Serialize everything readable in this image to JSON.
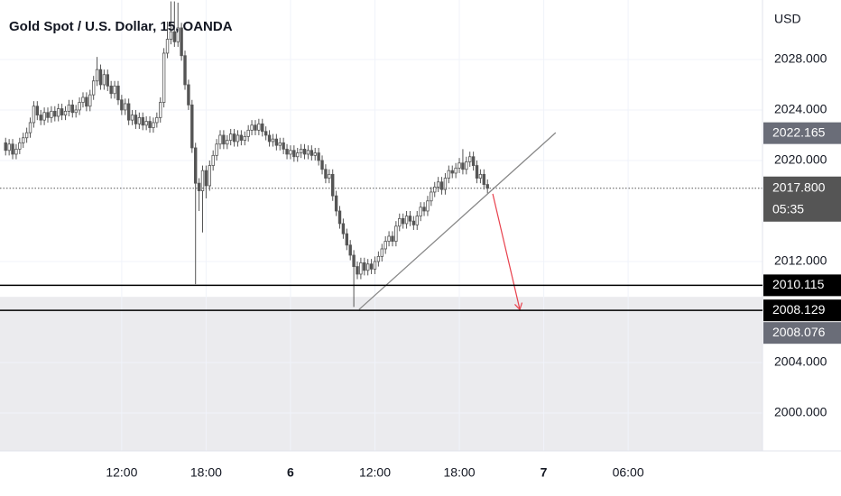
{
  "chart_data": {
    "type": "candlestick",
    "title": "Gold Spot / U.S. Dollar, 15, OANDA",
    "y_unit": "USD",
    "ylim": [
      1997.0,
      2032.71
    ],
    "yticks": [
      {
        "value": 2000,
        "label": "2000.000"
      },
      {
        "value": 2004,
        "label": "2004.000"
      },
      {
        "value": 2012,
        "label": "2012.000"
      },
      {
        "value": 2020,
        "label": "2020.000"
      },
      {
        "value": 2024,
        "label": "2024.000"
      },
      {
        "value": 2028,
        "label": "2028.000"
      }
    ],
    "xlim": [
      -1.6,
      215.2
    ],
    "xticks": [
      {
        "value": 33,
        "label": "12:00"
      },
      {
        "value": 57,
        "label": "18:00"
      },
      {
        "value": 81,
        "label": "6"
      },
      {
        "value": 105,
        "label": "12:00"
      },
      {
        "value": 129,
        "label": "18:00"
      },
      {
        "value": 153,
        "label": "7"
      },
      {
        "value": 177,
        "label": "06:00"
      }
    ],
    "grid": true,
    "up_color": "#ffffff",
    "down_color": "#555555",
    "wick_color": "#555555",
    "candles": [
      [
        2021.4,
        2021.8,
        2020.4,
        2020.8
      ],
      [
        2020.8,
        2021.7,
        2020.4,
        2021.3
      ],
      [
        2021.3,
        2021.7,
        2020.1,
        2020.5
      ],
      [
        2020.5,
        2021.3,
        2020.1,
        2020.9
      ],
      [
        2020.9,
        2021.8,
        2020.5,
        2021.4
      ],
      [
        2021.4,
        2022.2,
        2021.0,
        2021.8
      ],
      [
        2021.8,
        2022.6,
        2021.4,
        2022.2
      ],
      [
        2022.2,
        2023.4,
        2021.8,
        2023.0
      ],
      [
        2023.0,
        2024.7,
        2022.6,
        2024.3
      ],
      [
        2024.3,
        2024.7,
        2023.2,
        2023.6
      ],
      [
        2023.6,
        2024.0,
        2022.8,
        2023.2
      ],
      [
        2023.2,
        2024.2,
        2022.8,
        2023.8
      ],
      [
        2023.8,
        2024.2,
        2023.0,
        2023.4
      ],
      [
        2023.4,
        2024.3,
        2023.0,
        2023.9
      ],
      [
        2023.9,
        2024.3,
        2023.1,
        2023.5
      ],
      [
        2023.5,
        2024.5,
        2023.1,
        2024.1
      ],
      [
        2024.1,
        2024.5,
        2023.2,
        2023.6
      ],
      [
        2023.6,
        2024.3,
        2023.2,
        2023.9
      ],
      [
        2023.9,
        2024.8,
        2023.5,
        2024.4
      ],
      [
        2024.4,
        2024.8,
        2023.4,
        2023.8
      ],
      [
        2023.8,
        2024.4,
        2023.4,
        2024.0
      ],
      [
        2024.0,
        2025.0,
        2023.6,
        2024.6
      ],
      [
        2024.6,
        2025.4,
        2024.2,
        2025.0
      ],
      [
        2025.0,
        2025.4,
        2023.9,
        2024.3
      ],
      [
        2024.3,
        2025.6,
        2023.9,
        2025.2
      ],
      [
        2025.2,
        2026.7,
        2024.8,
        2026.3
      ],
      [
        2026.3,
        2028.2,
        2025.9,
        2027.2
      ],
      [
        2027.2,
        2027.6,
        2025.6,
        2026.0
      ],
      [
        2026.0,
        2027.2,
        2025.6,
        2026.8
      ],
      [
        2026.8,
        2027.2,
        2025.5,
        2025.9
      ],
      [
        2025.9,
        2026.3,
        2024.9,
        2025.3
      ],
      [
        2025.3,
        2026.3,
        2024.9,
        2025.9
      ],
      [
        2025.9,
        2026.3,
        2024.4,
        2024.8
      ],
      [
        2024.8,
        2025.2,
        2023.6,
        2024.0
      ],
      [
        2024.0,
        2024.9,
        2023.6,
        2024.5
      ],
      [
        2024.5,
        2024.9,
        2022.8,
        2023.2
      ],
      [
        2023.2,
        2024.0,
        2022.8,
        2023.6
      ],
      [
        2023.6,
        2024.0,
        2022.5,
        2022.9
      ],
      [
        2022.9,
        2023.8,
        2022.5,
        2023.4
      ],
      [
        2023.4,
        2023.8,
        2022.4,
        2022.8
      ],
      [
        2022.8,
        2023.5,
        2022.4,
        2023.1
      ],
      [
        2023.1,
        2023.5,
        2022.2,
        2022.6
      ],
      [
        2022.6,
        2023.4,
        2022.2,
        2023.0
      ],
      [
        2023.0,
        2023.8,
        2022.6,
        2023.4
      ],
      [
        2023.4,
        2025.0,
        2023.0,
        2024.6
      ],
      [
        2024.6,
        2028.9,
        2024.2,
        2028.5
      ],
      [
        2028.5,
        2031.0,
        2028.1,
        2029.6
      ],
      [
        2029.6,
        2032.6,
        2029.2,
        2030.2
      ],
      [
        2030.2,
        2032.6,
        2029.0,
        2029.4
      ],
      [
        2029.4,
        2032.5,
        2029.0,
        2030.5
      ],
      [
        2030.5,
        2030.9,
        2027.9,
        2028.3
      ],
      [
        2028.3,
        2028.7,
        2025.6,
        2026.0
      ],
      [
        2026.0,
        2026.4,
        2024.0,
        2024.4
      ],
      [
        2024.4,
        2024.8,
        2020.6,
        2021.0
      ],
      [
        2021.0,
        2021.4,
        2010.2,
        2018.2
      ],
      [
        2018.2,
        2018.6,
        2016.0,
        2017.6
      ],
      [
        2017.6,
        2019.6,
        2014.3,
        2019.2
      ],
      [
        2019.2,
        2019.6,
        2017.0,
        2018.0
      ],
      [
        2018.0,
        2020.0,
        2017.6,
        2019.6
      ],
      [
        2019.6,
        2020.8,
        2019.2,
        2020.4
      ],
      [
        2020.4,
        2021.7,
        2020.0,
        2021.3
      ],
      [
        2021.3,
        2022.4,
        2020.9,
        2022.0
      ],
      [
        2022.0,
        2022.4,
        2020.9,
        2021.3
      ],
      [
        2021.3,
        2022.0,
        2020.9,
        2021.6
      ],
      [
        2021.6,
        2022.5,
        2021.2,
        2022.1
      ],
      [
        2022.1,
        2022.5,
        2021.1,
        2021.5
      ],
      [
        2021.5,
        2022.4,
        2021.1,
        2022.0
      ],
      [
        2022.0,
        2022.4,
        2021.2,
        2021.6
      ],
      [
        2021.6,
        2022.3,
        2021.2,
        2021.9
      ],
      [
        2021.9,
        2022.8,
        2021.5,
        2022.4
      ],
      [
        2022.4,
        2023.2,
        2022.0,
        2022.8
      ],
      [
        2022.8,
        2023.2,
        2022.0,
        2022.4
      ],
      [
        2022.4,
        2023.3,
        2022.0,
        2022.9
      ],
      [
        2022.9,
        2023.3,
        2021.9,
        2022.3
      ],
      [
        2022.3,
        2022.7,
        2021.6,
        2022.0
      ],
      [
        2022.0,
        2022.4,
        2021.1,
        2021.5
      ],
      [
        2021.5,
        2022.1,
        2021.1,
        2021.7
      ],
      [
        2021.7,
        2022.1,
        2020.8,
        2021.2
      ],
      [
        2021.2,
        2021.8,
        2020.8,
        2021.4
      ],
      [
        2021.4,
        2021.8,
        2020.5,
        2020.9
      ],
      [
        2020.9,
        2021.3,
        2020.1,
        2020.5
      ],
      [
        2020.5,
        2021.2,
        2020.1,
        2020.8
      ],
      [
        2020.8,
        2021.2,
        2019.9,
        2020.3
      ],
      [
        2020.3,
        2021.0,
        2019.9,
        2020.6
      ],
      [
        2020.6,
        2021.3,
        2020.2,
        2020.9
      ],
      [
        2020.9,
        2021.3,
        2020.1,
        2020.5
      ],
      [
        2020.5,
        2021.2,
        2020.1,
        2020.8
      ],
      [
        2020.8,
        2021.2,
        2020.0,
        2020.4
      ],
      [
        2020.4,
        2021.0,
        2020.0,
        2020.6
      ],
      [
        2020.6,
        2021.0,
        2019.6,
        2020.0
      ],
      [
        2020.0,
        2020.4,
        2018.9,
        2019.3
      ],
      [
        2019.3,
        2019.7,
        2018.2,
        2018.6
      ],
      [
        2018.6,
        2019.3,
        2018.2,
        2018.9
      ],
      [
        2018.9,
        2019.3,
        2016.8,
        2017.2
      ],
      [
        2017.2,
        2017.6,
        2015.6,
        2016.0
      ],
      [
        2016.0,
        2016.4,
        2014.6,
        2015.0
      ],
      [
        2015.0,
        2015.4,
        2013.8,
        2014.2
      ],
      [
        2014.2,
        2014.6,
        2012.9,
        2013.3
      ],
      [
        2013.3,
        2013.7,
        2012.1,
        2012.5
      ],
      [
        2012.5,
        2012.9,
        2008.4,
        2011.6
      ],
      [
        2011.6,
        2012.0,
        2010.6,
        2011.0
      ],
      [
        2011.0,
        2012.3,
        2010.6,
        2011.9
      ],
      [
        2011.9,
        2012.3,
        2010.9,
        2011.3
      ],
      [
        2011.3,
        2012.2,
        2010.9,
        2011.8
      ],
      [
        2011.8,
        2012.2,
        2011.0,
        2011.4
      ],
      [
        2011.4,
        2012.4,
        2011.0,
        2012.0
      ],
      [
        2012.0,
        2012.8,
        2011.6,
        2012.4
      ],
      [
        2012.4,
        2013.4,
        2012.0,
        2013.0
      ],
      [
        2013.0,
        2014.0,
        2012.6,
        2013.6
      ],
      [
        2013.6,
        2014.4,
        2013.2,
        2014.0
      ],
      [
        2014.0,
        2014.4,
        2013.2,
        2013.6
      ],
      [
        2013.6,
        2015.2,
        2013.2,
        2014.8
      ],
      [
        2014.8,
        2015.8,
        2014.4,
        2015.4
      ],
      [
        2015.4,
        2015.8,
        2014.6,
        2015.0
      ],
      [
        2015.0,
        2016.0,
        2014.6,
        2015.6
      ],
      [
        2015.6,
        2016.0,
        2014.8,
        2015.2
      ],
      [
        2015.2,
        2015.6,
        2014.5,
        2014.9
      ],
      [
        2014.9,
        2016.0,
        2014.5,
        2015.6
      ],
      [
        2015.6,
        2016.7,
        2015.2,
        2016.3
      ],
      [
        2016.3,
        2016.7,
        2015.6,
        2016.0
      ],
      [
        2016.0,
        2017.2,
        2015.6,
        2016.8
      ],
      [
        2016.8,
        2017.9,
        2016.4,
        2017.5
      ],
      [
        2017.5,
        2018.3,
        2017.1,
        2017.9
      ],
      [
        2017.9,
        2018.7,
        2017.5,
        2018.3
      ],
      [
        2018.3,
        2018.7,
        2017.3,
        2017.7
      ],
      [
        2017.7,
        2019.0,
        2017.3,
        2018.6
      ],
      [
        2018.6,
        2019.6,
        2018.2,
        2019.2
      ],
      [
        2019.2,
        2019.6,
        2018.6,
        2019.0
      ],
      [
        2019.0,
        2019.8,
        2018.6,
        2019.4
      ],
      [
        2019.4,
        2020.2,
        2019.0,
        2019.8
      ],
      [
        2019.8,
        2020.9,
        2018.9,
        2019.3
      ],
      [
        2019.3,
        2020.3,
        2018.9,
        2019.9
      ],
      [
        2019.9,
        2020.7,
        2019.5,
        2020.3
      ],
      [
        2020.3,
        2020.7,
        2019.2,
        2019.6
      ],
      [
        2019.6,
        2020.0,
        2018.2,
        2018.6
      ],
      [
        2018.6,
        2019.3,
        2018.2,
        2018.9
      ],
      [
        2018.9,
        2019.3,
        2017.7,
        2018.1
      ],
      [
        2018.1,
        2018.5,
        2017.4,
        2017.8
      ]
    ],
    "current_price": {
      "value": 2017.8,
      "label": "2017.800",
      "countdown": "05:35",
      "color": "#555555"
    },
    "levels": [
      {
        "value": 2010.115,
        "label": "2010.115",
        "color": "#000000"
      },
      {
        "value": 2008.129,
        "label": "2008.129",
        "color": "#000000"
      }
    ],
    "price_labels": [
      {
        "value": 2022.165,
        "label": "2022.165",
        "color": "#6a6d78"
      }
    ],
    "zone": {
      "top": 2009.2,
      "label": {
        "value": 2008.076,
        "label": "2008.076"
      },
      "color": "#ebebee",
      "label_color": "#6a6d78"
    },
    "trend_line": {
      "x": [
        100.5,
        156.4
      ],
      "y": [
        2008.2,
        2022.2
      ],
      "color": "#888888"
    },
    "arrow": {
      "x": [
        138.5,
        146.2
      ],
      "y": [
        2017.36,
        2008.2
      ],
      "color": "#e8414d"
    }
  }
}
